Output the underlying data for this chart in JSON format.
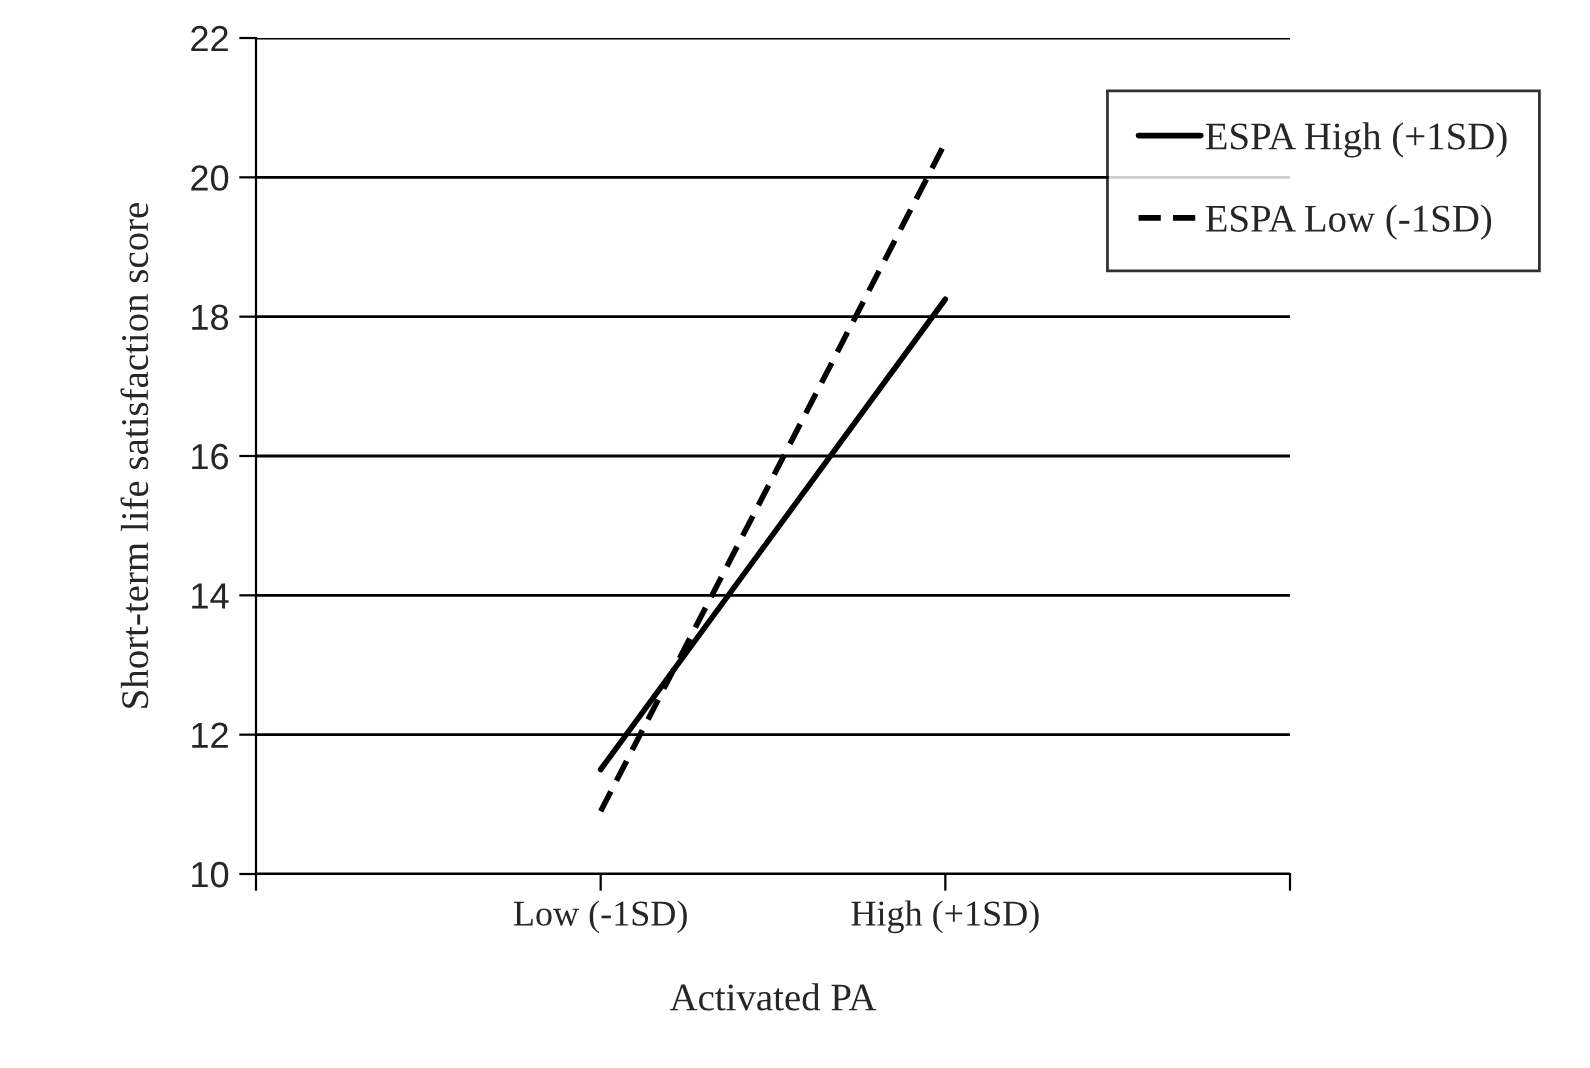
{
  "chart_data": {
    "type": "line",
    "xlabel": "Activated PA",
    "ylabel": "Short-term life satisfaction score",
    "categories": [
      null,
      "Low (-1SD)",
      "High (+1SD)",
      null
    ],
    "series": [
      {
        "name": "ESPA High (+1SD)",
        "color": "#000000",
        "line_style": "solid",
        "values": [
          null,
          11.5,
          18.25,
          null
        ]
      },
      {
        "name": "ESPA Low (-1SD)",
        "color": "#000000",
        "line_style": "dashed",
        "values": [
          null,
          10.9,
          20.5,
          null
        ]
      }
    ],
    "ylim": [
      10,
      22
    ],
    "yticks": [
      10,
      12,
      14,
      16,
      18,
      20,
      22
    ],
    "grid": "y",
    "legend": "top right",
    "marker": "none"
  }
}
